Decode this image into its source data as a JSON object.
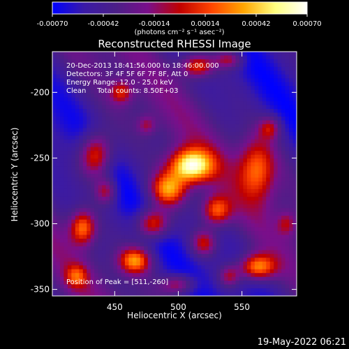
{
  "colorbar": {
    "ticks": [
      "-0.00070",
      "-0.00042",
      "-0.00014",
      "0.00014",
      "0.00042",
      "0.00070"
    ],
    "tick_values": [
      -0.0007,
      -0.00042,
      -0.00014,
      0.00014,
      0.00042,
      0.0007
    ],
    "range": [
      -0.0007,
      0.0007
    ],
    "unit_label": "(photons cm⁻² s⁻¹ asec⁻²)",
    "stops": [
      "#0000ff",
      "#3a1aa6",
      "#4b1f87",
      "#7a0f8a",
      "#c00000",
      "#ff4500",
      "#ffa500",
      "#ffff80",
      "#ffffff"
    ]
  },
  "chart_data": {
    "type": "heatmap",
    "title": "Reconstructed RHESSI Image",
    "xlabel": "Heliocentric X (arcsec)",
    "ylabel": "Heliocentric Y (arcsec)",
    "xlim": [
      401,
      593
    ],
    "ylim": [
      -355,
      -169
    ],
    "x_ticks": [
      "450",
      "500",
      "550"
    ],
    "x_tick_values": [
      450,
      500,
      550
    ],
    "y_ticks": [
      "-200",
      "-250",
      "-300",
      "-350"
    ],
    "y_tick_values": [
      -200,
      -250,
      -300,
      -350
    ],
    "annotations": [
      "20-Dec-2013 18:41:56.000 to 18:46:00.000",
      "Detectors: 3F 4F 5F 6F 7F 8F, Att 0",
      "Energy Range: 12.0 - 25.0 keV",
      "Clean     Total counts: 8.50E+03"
    ],
    "peak_label": "Position of Peak = [511,-260]",
    "peak": [
      511,
      -260
    ],
    "grid": false,
    "sources": [
      {
        "x": 510,
        "y": -256,
        "sx": 12,
        "sy": 9,
        "amp": 1.2
      },
      {
        "x": 492,
        "y": -274,
        "sx": 10,
        "sy": 9,
        "amp": 0.9
      },
      {
        "x": 480,
        "y": -300,
        "sx": 9,
        "sy": 8,
        "amp": 0.85
      },
      {
        "x": 466,
        "y": -328,
        "sx": 9,
        "sy": 7,
        "amp": 0.85
      },
      {
        "x": 530,
        "y": -290,
        "sx": 8,
        "sy": 8,
        "amp": 0.75
      },
      {
        "x": 520,
        "y": -315,
        "sx": 7,
        "sy": 7,
        "amp": 0.6
      },
      {
        "x": 435,
        "y": -248,
        "sx": 9,
        "sy": 12,
        "amp": 0.85
      },
      {
        "x": 425,
        "y": -303,
        "sx": 7,
        "sy": 9,
        "amp": 0.8
      },
      {
        "x": 443,
        "y": -275,
        "sx": 6,
        "sy": 7,
        "amp": 0.55
      },
      {
        "x": 562,
        "y": -258,
        "sx": 10,
        "sy": 16,
        "amp": 0.7
      },
      {
        "x": 572,
        "y": -227,
        "sx": 6,
        "sy": 6,
        "amp": 0.5
      },
      {
        "x": 562,
        "y": -333,
        "sx": 10,
        "sy": 7,
        "amp": 0.9
      },
      {
        "x": 540,
        "y": -340,
        "sx": 6,
        "sy": 6,
        "amp": 0.5
      },
      {
        "x": 500,
        "y": -346,
        "sx": 9,
        "sy": 5,
        "amp": 0.55
      },
      {
        "x": 515,
        "y": -180,
        "sx": 9,
        "sy": 6,
        "amp": 0.7
      },
      {
        "x": 540,
        "y": -175,
        "sx": 8,
        "sy": 5,
        "amp": 0.55
      },
      {
        "x": 455,
        "y": -200,
        "sx": 6,
        "sy": 6,
        "amp": 0.5
      },
      {
        "x": 420,
        "y": -340,
        "sx": 6,
        "sy": 6,
        "amp": 0.5
      },
      {
        "x": 475,
        "y": -225,
        "sx": 5,
        "sy": 5,
        "amp": 0.35
      },
      {
        "x": 585,
        "y": -300,
        "sx": 5,
        "sy": 6,
        "amp": 0.35
      }
    ],
    "background_min": -0.45,
    "background_max": 0.2
  },
  "timestamp": "19-May-2022 06:21"
}
